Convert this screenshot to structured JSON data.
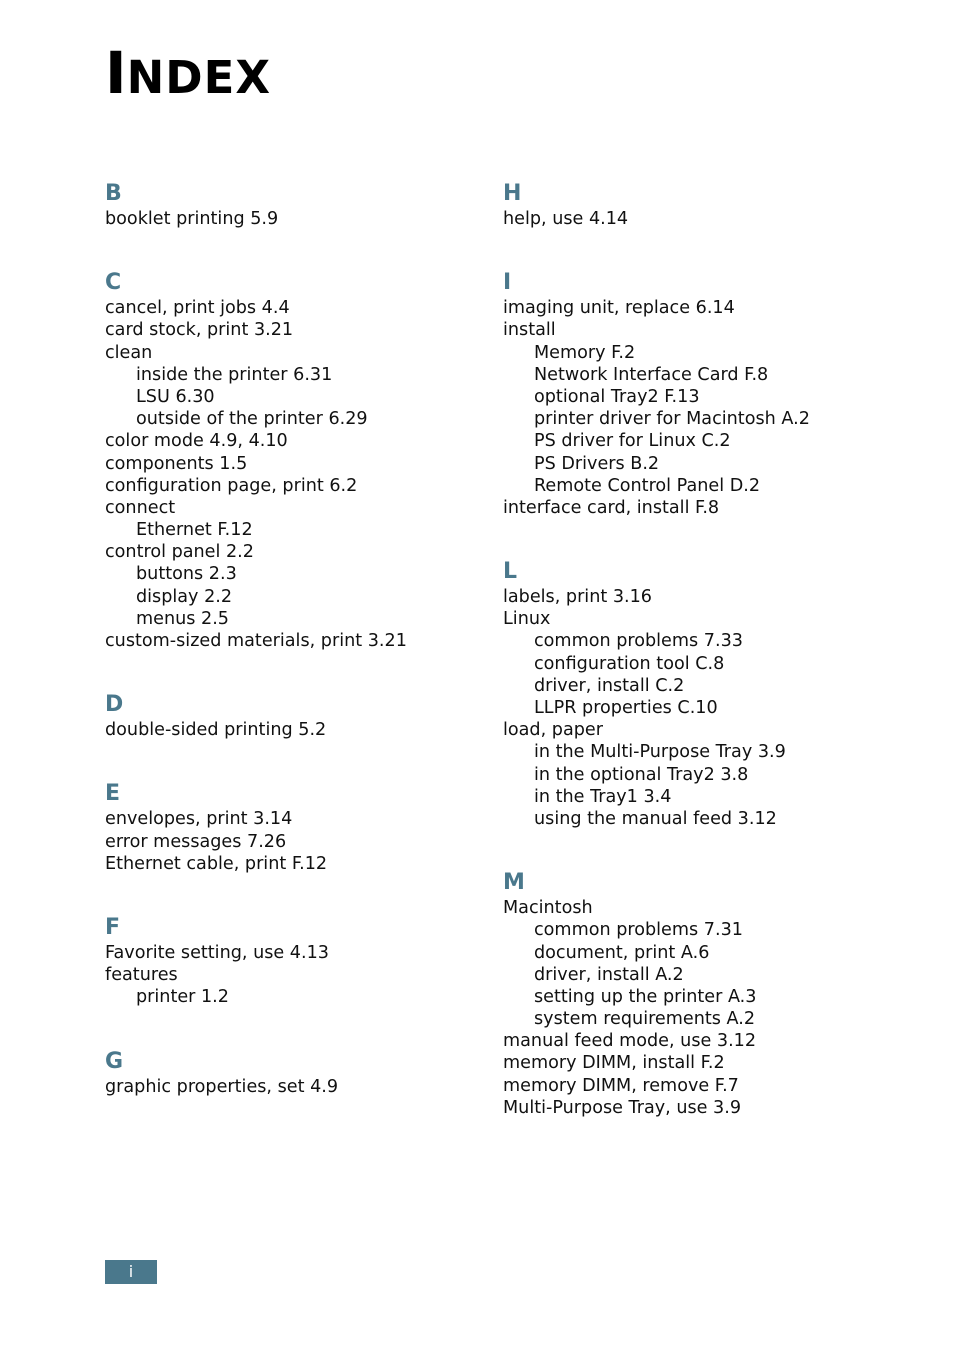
{
  "title": {
    "first": "I",
    "rest": "NDEX"
  },
  "page_number": "i",
  "accent_color": "#4a788c",
  "columns": [
    [
      {
        "letter": "B",
        "entries": [
          {
            "text": "booklet printing 5.9",
            "sub": false
          }
        ]
      },
      {
        "letter": "C",
        "entries": [
          {
            "text": "cancel, print jobs 4.4",
            "sub": false
          },
          {
            "text": "card stock, print 3.21",
            "sub": false
          },
          {
            "text": "clean",
            "sub": false
          },
          {
            "text": "inside the printer 6.31",
            "sub": true
          },
          {
            "text": "LSU 6.30",
            "sub": true
          },
          {
            "text": "outside of the printer 6.29",
            "sub": true
          },
          {
            "text": "color mode 4.9, 4.10",
            "sub": false
          },
          {
            "text": "components 1.5",
            "sub": false
          },
          {
            "text": "configuration page, print 6.2",
            "sub": false
          },
          {
            "text": "connect",
            "sub": false
          },
          {
            "text": "Ethernet F.12",
            "sub": true
          },
          {
            "text": "control panel 2.2",
            "sub": false
          },
          {
            "text": "buttons 2.3",
            "sub": true
          },
          {
            "text": "display 2.2",
            "sub": true
          },
          {
            "text": "menus 2.5",
            "sub": true
          },
          {
            "text": "custom-sized materials, print 3.21",
            "sub": false
          }
        ]
      },
      {
        "letter": "D",
        "entries": [
          {
            "text": "double-sided printing 5.2",
            "sub": false
          }
        ]
      },
      {
        "letter": "E",
        "entries": [
          {
            "text": "envelopes, print 3.14",
            "sub": false
          },
          {
            "text": "error messages 7.26",
            "sub": false
          },
          {
            "text": "Ethernet cable, print F.12",
            "sub": false
          }
        ]
      },
      {
        "letter": "F",
        "entries": [
          {
            "text": "Favorite setting, use 4.13",
            "sub": false
          },
          {
            "text": "features",
            "sub": false
          },
          {
            "text": "printer 1.2",
            "sub": true
          }
        ]
      },
      {
        "letter": "G",
        "entries": [
          {
            "text": "graphic properties, set 4.9",
            "sub": false
          }
        ]
      }
    ],
    [
      {
        "letter": "H",
        "entries": [
          {
            "text": "help, use 4.14",
            "sub": false
          }
        ]
      },
      {
        "letter": "I",
        "entries": [
          {
            "text": "imaging unit, replace 6.14",
            "sub": false
          },
          {
            "text": "install",
            "sub": false
          },
          {
            "text": "Memory F.2",
            "sub": true
          },
          {
            "text": "Network Interface Card F.8",
            "sub": true
          },
          {
            "text": "optional Tray2 F.13",
            "sub": true
          },
          {
            "text": "printer driver for Macintosh A.2",
            "sub": true
          },
          {
            "text": "PS driver for Linux C.2",
            "sub": true
          },
          {
            "text": "PS Drivers B.2",
            "sub": true
          },
          {
            "text": "Remote Control Panel D.2",
            "sub": true
          },
          {
            "text": "interface card, install F.8",
            "sub": false
          }
        ]
      },
      {
        "letter": "L",
        "entries": [
          {
            "text": "labels, print 3.16",
            "sub": false
          },
          {
            "text": "Linux",
            "sub": false
          },
          {
            "text": "common problems 7.33",
            "sub": true
          },
          {
            "text": "configuration tool C.8",
            "sub": true
          },
          {
            "text": "driver, install C.2",
            "sub": true
          },
          {
            "text": "LLPR properties C.10",
            "sub": true
          },
          {
            "text": "load, paper",
            "sub": false
          },
          {
            "text": "in the Multi-Purpose Tray 3.9",
            "sub": true
          },
          {
            "text": "in the optional Tray2 3.8",
            "sub": true
          },
          {
            "text": "in the Tray1 3.4",
            "sub": true
          },
          {
            "text": "using the manual feed 3.12",
            "sub": true
          }
        ]
      },
      {
        "letter": "M",
        "entries": [
          {
            "text": "Macintosh",
            "sub": false
          },
          {
            "text": "common problems 7.31",
            "sub": true
          },
          {
            "text": "document, print A.6",
            "sub": true
          },
          {
            "text": "driver, install A.2",
            "sub": true
          },
          {
            "text": "setting up the printer A.3",
            "sub": true
          },
          {
            "text": "system requirements A.2",
            "sub": true
          },
          {
            "text": "manual feed mode, use 3.12",
            "sub": false
          },
          {
            "text": "memory DIMM, install F.2",
            "sub": false
          },
          {
            "text": "memory DIMM, remove F.7",
            "sub": false
          },
          {
            "text": "Multi-Purpose Tray, use 3.9",
            "sub": false
          }
        ]
      }
    ]
  ]
}
